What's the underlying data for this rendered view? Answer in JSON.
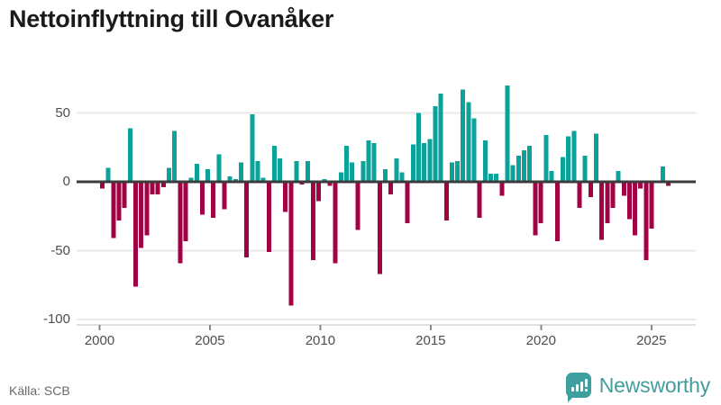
{
  "header": {
    "title": "Nettoinflyttning till Ovanåker"
  },
  "footer": {
    "source": "Källa: SCB",
    "brand": "Newsworthy"
  },
  "chart_data": {
    "type": "bar",
    "title": "Nettoinflyttning till Ovanåker",
    "xlabel": "",
    "ylabel": "",
    "frequency": "quarterly",
    "start_year": 2000,
    "start_quarter": 1,
    "x_tick_labels": [
      "2000",
      "2005",
      "2010",
      "2015",
      "2020",
      "2025"
    ],
    "y_tick_labels": [
      "50",
      "0",
      "-50",
      "-100"
    ],
    "y_ticks": [
      50,
      0,
      -50,
      -100
    ],
    "ylim": [
      -107,
      77
    ],
    "grid": true,
    "legend": false,
    "colors": {
      "positive": "#0ba29a",
      "negative": "#a00244"
    },
    "values": [
      -5,
      10,
      -41,
      -28,
      -19,
      39,
      -76,
      -48,
      -39,
      -9,
      -9,
      -4,
      10,
      37,
      -59,
      -43,
      3,
      13,
      -24,
      9,
      -26,
      20,
      -20,
      4,
      2,
      14,
      -55,
      49,
      15,
      3,
      -51,
      26,
      17,
      -22,
      -90,
      15,
      -2,
      15,
      -57,
      -14,
      2,
      -3,
      -59,
      7,
      26,
      14,
      -35,
      15,
      30,
      28,
      -67,
      9,
      -9,
      17,
      7,
      -30,
      27,
      50,
      28,
      31,
      55,
      64,
      -28,
      14,
      15,
      67,
      58,
      46,
      -26,
      30,
      6,
      6,
      -10,
      70,
      12,
      19,
      23,
      26,
      -39,
      -30,
      34,
      8,
      -43,
      18,
      33,
      37,
      -19,
      19,
      -11,
      35,
      -42,
      -30,
      -19,
      8,
      -10,
      -27,
      -39,
      -5,
      -57,
      -34,
      0,
      11,
      -3
    ]
  }
}
